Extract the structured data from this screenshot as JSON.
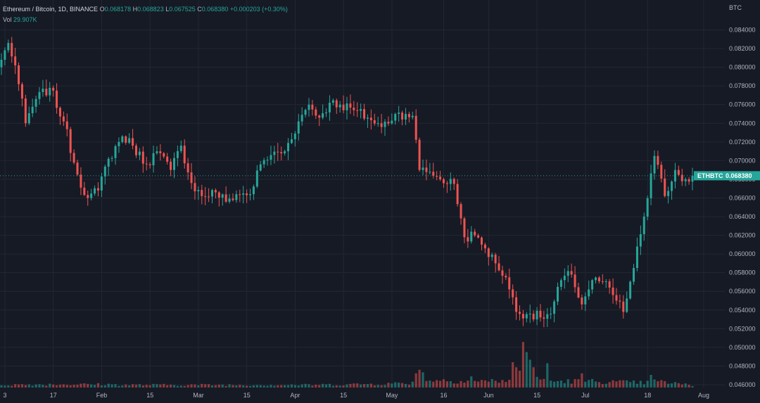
{
  "legend": {
    "symbol": "Ethereum / Bitcoin, 1D, BINANCE",
    "o_label": "O",
    "o_value": "0.068178",
    "h_label": "H",
    "h_value": "0.068823",
    "l_label": "L",
    "l_value": "0.067525",
    "c_label": "C",
    "c_value": "0.068380",
    "change": "+0.000203 (+0.30%)",
    "vol_label": "Vol",
    "vol_value": "29.907K"
  },
  "axis": {
    "unit": "BTC",
    "ticker": "ETHBTC",
    "last_price": "0.068380"
  },
  "colors": {
    "background": "#161a25",
    "up": "#26a69a",
    "down": "#ef5350",
    "grid": "#232733"
  },
  "chart_data": {
    "type": "candlestick",
    "y_scale": "linear",
    "ylim": [
      0.0458,
      0.0855
    ],
    "y_ticks": [
      "0.046000",
      "0.048000",
      "0.050000",
      "0.052000",
      "0.054000",
      "0.056000",
      "0.058000",
      "0.060000",
      "0.062000",
      "0.064000",
      "0.066000",
      "0.068000",
      "0.070000",
      "0.072000",
      "0.074000",
      "0.076000",
      "0.078000",
      "0.080000",
      "0.082000",
      "0.084000"
    ],
    "x_ticks": [
      "3",
      "17",
      "Feb",
      "15",
      "Mar",
      "15",
      "Apr",
      "15",
      "May",
      "16",
      "Jun",
      "15",
      "Jul",
      "18",
      "Aug"
    ],
    "grid": true,
    "last_price": 0.06838,
    "anchors": [
      [
        0,
        0.0808
      ],
      [
        2,
        0.0826
      ],
      [
        4,
        0.0802
      ],
      [
        7,
        0.074
      ],
      [
        10,
        0.0766
      ],
      [
        14,
        0.0778
      ],
      [
        18,
        0.0742
      ],
      [
        22,
        0.0685
      ],
      [
        25,
        0.066
      ],
      [
        28,
        0.0668
      ],
      [
        31,
        0.0702
      ],
      [
        35,
        0.0726
      ],
      [
        38,
        0.0716
      ],
      [
        42,
        0.0696
      ],
      [
        45,
        0.071
      ],
      [
        49,
        0.069
      ],
      [
        52,
        0.0716
      ],
      [
        55,
        0.0676
      ],
      [
        58,
        0.0662
      ],
      [
        62,
        0.0666
      ],
      [
        65,
        0.0656
      ],
      [
        68,
        0.0664
      ],
      [
        72,
        0.0664
      ],
      [
        75,
        0.0696
      ],
      [
        78,
        0.0706
      ],
      [
        82,
        0.071
      ],
      [
        86,
        0.0742
      ],
      [
        89,
        0.076
      ],
      [
        92,
        0.0746
      ],
      [
        95,
        0.0762
      ],
      [
        98,
        0.076
      ],
      [
        102,
        0.0754
      ],
      [
        106,
        0.0746
      ],
      [
        110,
        0.0736
      ],
      [
        114,
        0.075
      ],
      [
        117,
        0.075
      ],
      [
        119,
        0.0748
      ],
      [
        121,
        0.069
      ],
      [
        124,
        0.0688
      ],
      [
        127,
        0.068
      ],
      [
        131,
        0.0675
      ],
      [
        134,
        0.0618
      ],
      [
        137,
        0.062
      ],
      [
        140,
        0.0606
      ],
      [
        143,
        0.059
      ],
      [
        146,
        0.0575
      ],
      [
        149,
        0.0538
      ],
      [
        153,
        0.0536
      ],
      [
        156,
        0.0532
      ],
      [
        159,
        0.0536
      ],
      [
        162,
        0.0572
      ],
      [
        165,
        0.0578
      ],
      [
        168,
        0.0546
      ],
      [
        171,
        0.0572
      ],
      [
        174,
        0.057
      ],
      [
        177,
        0.0556
      ],
      [
        180,
        0.0538
      ],
      [
        183,
        0.0585
      ],
      [
        186,
        0.064
      ],
      [
        189,
        0.0705
      ],
      [
        192,
        0.0662
      ],
      [
        195,
        0.069
      ],
      [
        198,
        0.068
      ],
      [
        200,
        0.06838
      ]
    ],
    "volume": {
      "baseline": [
        0,
        5,
        12,
        6,
        14,
        6,
        18,
        6,
        24,
        6,
        30,
        6,
        36,
        5,
        60,
        5,
        90,
        5,
        110,
        7,
        119,
        9,
        121,
        16,
        130,
        13,
        140,
        12,
        148,
        14,
        151,
        28,
        154,
        22,
        158,
        12,
        170,
        12,
        180,
        10,
        186,
        9,
        189,
        12,
        195,
        8,
        200,
        4
      ],
      "spikes": [
        [
          120,
          28
        ],
        [
          121,
          35
        ],
        [
          122,
          30
        ],
        [
          136,
          22
        ],
        [
          148,
          50
        ],
        [
          149,
          40
        ],
        [
          151,
          90
        ],
        [
          152,
          70
        ],
        [
          153,
          55
        ],
        [
          154,
          40
        ],
        [
          158,
          48
        ],
        [
          168,
          28
        ],
        [
          188,
          25
        ]
      ]
    }
  }
}
